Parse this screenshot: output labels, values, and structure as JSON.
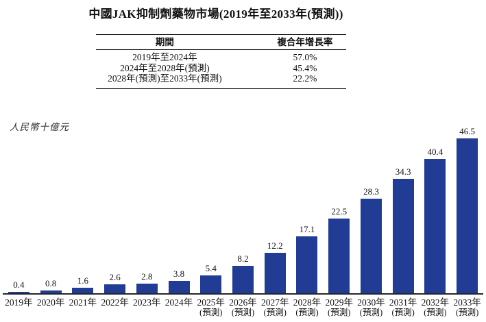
{
  "title": "中國JAK抑制劑藥物市場(2019年至2033年(預測))",
  "cagr_table": {
    "headers": {
      "period": "期間",
      "cagr": "複合年增長率"
    },
    "rows": [
      {
        "period": "2019年至2024年",
        "cagr": "57.0%"
      },
      {
        "period": "2024年至2028年(預測)",
        "cagr": "45.4%"
      },
      {
        "period": "2028年(預測)至2033年(預測)",
        "cagr": "22.2%"
      }
    ]
  },
  "chart_data": {
    "type": "bar",
    "title": "中國JAK抑制劑藥物市場(2019年至2033年(預測))",
    "ylabel": "人民幣十億元",
    "xlabel": "",
    "categories": [
      "2019年",
      "2020年",
      "2021年",
      "2022年",
      "2023年",
      "2024年",
      "2025年",
      "2026年",
      "2027年",
      "2028年",
      "2029年",
      "2030年",
      "2031年",
      "2032年",
      "2033年"
    ],
    "category_notes": [
      "",
      "",
      "",
      "",
      "",
      "",
      "(預測)",
      "(預測)",
      "(預測)",
      "(預測)",
      "(預測)",
      "(預測)",
      "(預測)",
      "(預測)",
      "(預測)"
    ],
    "values": [
      0.4,
      0.8,
      1.6,
      2.6,
      2.8,
      3.8,
      5.4,
      8.2,
      12.2,
      17.1,
      22.5,
      28.3,
      34.3,
      40.4,
      46.5
    ],
    "value_labels": [
      "0.4",
      "0.8",
      "1.6",
      "2.6",
      "2.8",
      "3.8",
      "5.4",
      "8.2",
      "12.2",
      "17.1",
      "22.5",
      "28.3",
      "34.3",
      "40.4",
      "46.5"
    ],
    "bar_color": "#213C94",
    "axis_color": "#262626",
    "ylim": [
      0,
      48
    ],
    "grid": false,
    "legend": false
  }
}
